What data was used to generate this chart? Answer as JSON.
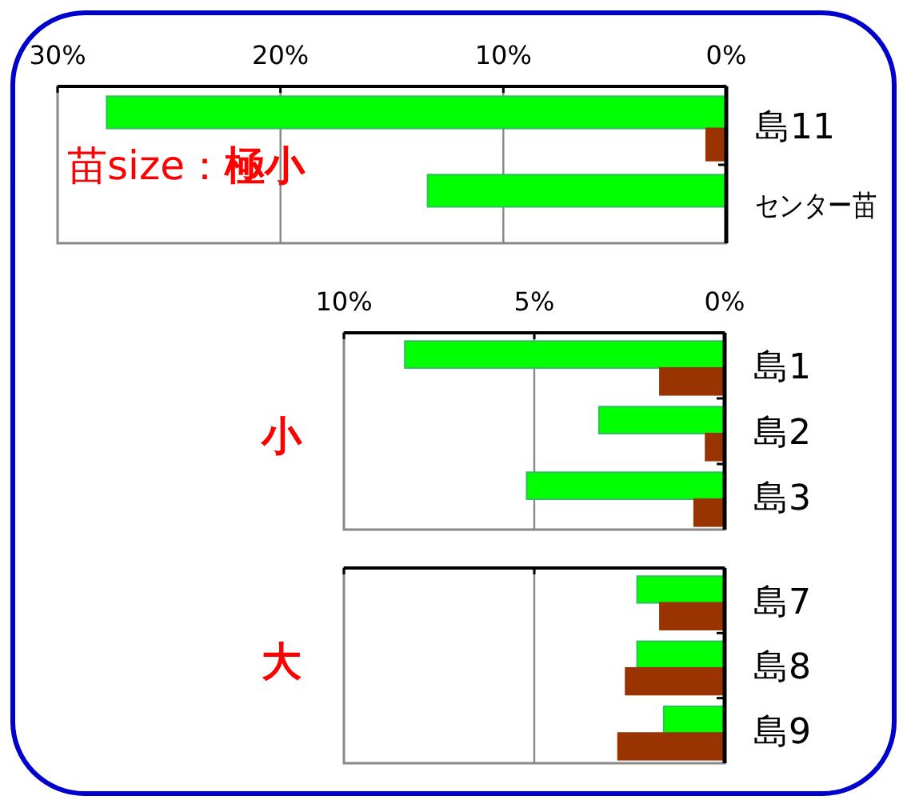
{
  "chart_data": [
    {
      "type": "bar",
      "orientation": "horizontal",
      "categories": [
        "島11",
        "センター苗"
      ],
      "series": [
        {
          "color": "#00ff00",
          "values": [
            27.8,
            13.4
          ]
        },
        {
          "color": "#993300",
          "values": [
            0.9,
            null
          ]
        }
      ],
      "xlim": [
        30,
        0
      ],
      "xticks": [
        {
          "value": 30,
          "label": "30%"
        },
        {
          "value": 20,
          "label": "20%"
        },
        {
          "value": 10,
          "label": "10%"
        },
        {
          "value": 0,
          "label": "0%"
        }
      ],
      "grid": "x",
      "annotations": [
        "苗size：**極小**"
      ]
    },
    {
      "type": "bar",
      "orientation": "horizontal",
      "categories": [
        "島1",
        "島2",
        "島3"
      ],
      "series": [
        {
          "color": "#00ff00",
          "values": [
            8.4,
            3.3,
            5.2
          ]
        },
        {
          "color": "#993300",
          "values": [
            1.7,
            0.5,
            0.8
          ]
        }
      ],
      "xlim": [
        10,
        0
      ],
      "xticks": [
        {
          "value": 10,
          "label": "10%"
        },
        {
          "value": 5,
          "label": "5%"
        },
        {
          "value": 0,
          "label": "0%"
        }
      ],
      "grid": "x",
      "annotations": [
        "**小**"
      ]
    },
    {
      "type": "bar",
      "orientation": "horizontal",
      "categories": [
        "島7",
        "島8",
        "島9"
      ],
      "series": [
        {
          "color": "#00ff00",
          "values": [
            2.3,
            2.3,
            1.6
          ]
        },
        {
          "color": "#993300",
          "values": [
            1.7,
            2.6,
            2.8
          ]
        }
      ],
      "xlim": [
        10,
        0
      ],
      "xticks": [
        {
          "value": 10,
          "label": null
        },
        {
          "value": 5,
          "label": null
        },
        {
          "value": 0,
          "label": null
        }
      ],
      "grid": "x",
      "tick_labels": "y",
      "annotations": [
        "**大**"
      ]
    }
  ]
}
